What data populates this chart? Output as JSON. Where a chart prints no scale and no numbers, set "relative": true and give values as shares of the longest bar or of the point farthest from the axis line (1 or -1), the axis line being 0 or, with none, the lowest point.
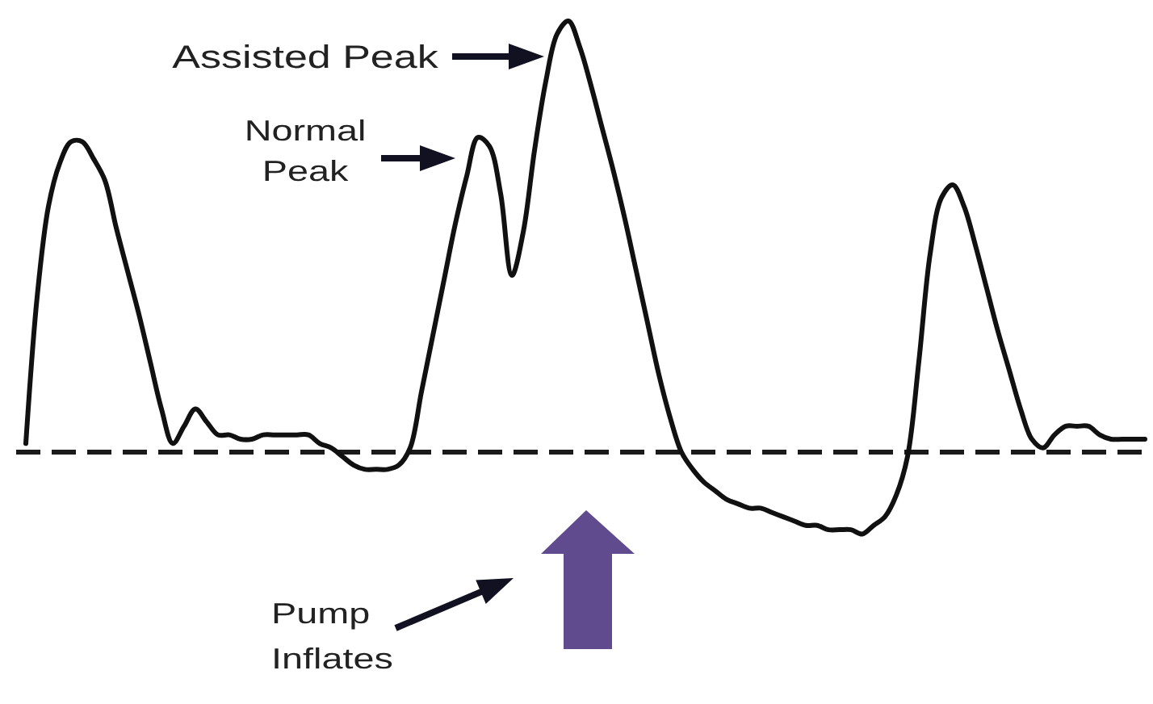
{
  "chart_data": {
    "type": "line",
    "relative": true,
    "color": "#111111",
    "categories": [
      null,
      null,
      null,
      null,
      null,
      null,
      null,
      null,
      null,
      null,
      null,
      null,
      null,
      null,
      null,
      null,
      null,
      null,
      null,
      null,
      null,
      null,
      null,
      null,
      null,
      null,
      null,
      null,
      null,
      null,
      null,
      null,
      null,
      null,
      null,
      null,
      null,
      null,
      null,
      null,
      null,
      null,
      null,
      null,
      null,
      null,
      null,
      null,
      null,
      null,
      null,
      null,
      null,
      null,
      null,
      null,
      null,
      null,
      null,
      null,
      null,
      null,
      null,
      null,
      null,
      null,
      null,
      null,
      null,
      null,
      null,
      null,
      null,
      null,
      null,
      null,
      null,
      null,
      null,
      null,
      null,
      null,
      null,
      null,
      null,
      null,
      null,
      null,
      null,
      null,
      null,
      null,
      null,
      null,
      null,
      null,
      null,
      null,
      null,
      null
    ],
    "values": [
      0.02,
      0.36,
      0.57,
      0.67,
      0.72,
      0.72,
      0.68,
      0.63,
      0.52,
      0.42,
      0.32,
      0.21,
      0.1,
      0.02,
      0.06,
      0.1,
      0.07,
      0.04,
      0.04,
      0.03,
      0.03,
      0.04,
      0.04,
      0.04,
      0.04,
      0.04,
      0.02,
      0.01,
      -0.01,
      -0.03,
      -0.04,
      -0.04,
      -0.04,
      -0.03,
      0.01,
      0.14,
      0.27,
      0.4,
      0.53,
      0.64,
      0.73,
      0.71,
      0.6,
      0.41,
      0.51,
      0.7,
      0.86,
      0.97,
      1,
      0.94,
      0.85,
      0.75,
      0.65,
      0.54,
      0.42,
      0.3,
      0.18,
      0.08,
      0,
      -0.04,
      -0.07,
      -0.09,
      -0.11,
      -0.12,
      -0.13,
      -0.13,
      -0.14,
      -0.15,
      -0.16,
      -0.17,
      -0.17,
      -0.18,
      -0.18,
      -0.18,
      -0.19,
      -0.17,
      -0.15,
      -0.1,
      -0.01,
      0.21,
      0.46,
      0.59,
      0.62,
      0.57,
      0.48,
      0.38,
      0.28,
      0.19,
      0.1,
      0.03,
      0.01,
      0.04,
      0.06,
      0.06,
      0.06,
      0.04,
      0.03,
      0.03,
      0.03,
      0.03
    ],
    "ref_lines": [
      {
        "axis": "y",
        "value": 0,
        "color": "#1a1a1a",
        "line_style": "dashed"
      }
    ],
    "annotations": [
      "Assisted Peak",
      "Normal Peak",
      "Pump Inflates"
    ]
  }
}
